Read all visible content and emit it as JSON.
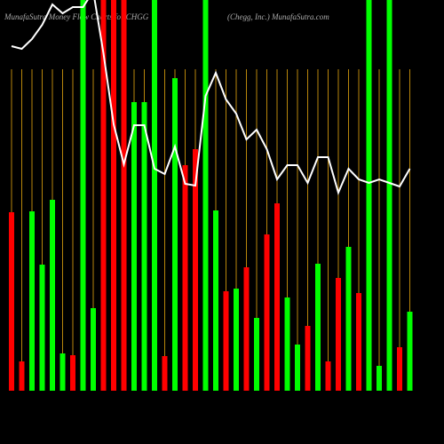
{
  "chart_data": {
    "type": "bar",
    "title": "MunafaSutra  Money Flow  Charts for CHGG",
    "subtitle": "(Chegg, Inc.) MunafaSutra.com",
    "ylim": [
      0,
      440
    ],
    "grid": true,
    "grid_color": "#b8860b",
    "series": [
      {
        "values": [
          201,
          33,
          202,
          142,
          215,
          42,
          40,
          440,
          93,
          440,
          440,
          440,
          325,
          325,
          440,
          39,
          352,
          254,
          272,
          440,
          203,
          112,
          115,
          139,
          82,
          176,
          211,
          105,
          52,
          73,
          143,
          33,
          127,
          162,
          110,
          440,
          28,
          440,
          49,
          89
        ],
        "colors": [
          "#ff0000",
          "#ff0000",
          "#00ff00",
          "#00ff00",
          "#00ff00",
          "#00ff00",
          "#ff0000",
          "#00ff00",
          "#00ff00",
          "#ff0000",
          "#ff0000",
          "#ff0000",
          "#00ff00",
          "#00ff00",
          "#00ff00",
          "#ff0000",
          "#00ff00",
          "#ff0000",
          "#ff0000",
          "#00ff00",
          "#00ff00",
          "#ff0000",
          "#00ff00",
          "#ff0000",
          "#00ff00",
          "#ff0000",
          "#ff0000",
          "#00ff00",
          "#00ff00",
          "#ff0000",
          "#00ff00",
          "#ff0000",
          "#ff0000",
          "#00ff00",
          "#ff0000",
          "#00ff00",
          "#00ff00",
          "#00ff00",
          "#ff0000",
          "#00ff00"
        ]
      },
      {
        "type": "line",
        "color": "#ffffff",
        "values": [
          388,
          385,
          396,
          412,
          435,
          425,
          432,
          432,
          450,
          380,
          300,
          255,
          299,
          299,
          250,
          244,
          275,
          233,
          231,
          332,
          358,
          328,
          312,
          283,
          294,
          272,
          238,
          254,
          254,
          234,
          263,
          263,
          223,
          250,
          238,
          234,
          238,
          234,
          230,
          250
        ]
      }
    ]
  }
}
